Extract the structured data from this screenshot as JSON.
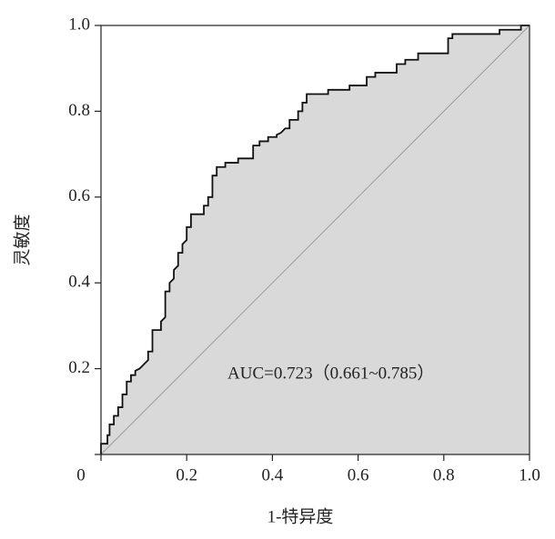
{
  "chart_data": {
    "type": "line",
    "x_label": "1-特异度",
    "y_label": "灵敏度",
    "annotation": "AUC=0.723（0.661~0.785）",
    "x": [
      0,
      0,
      0.015,
      0.015,
      0.02,
      0.02,
      0.03,
      0.03,
      0.04,
      0.04,
      0.05,
      0.05,
      0.06,
      0.06,
      0.07,
      0.07,
      0.08,
      0.08,
      0.09,
      0.1,
      0.11,
      0.11,
      0.12,
      0.12,
      0.14,
      0.14,
      0.15,
      0.15,
      0.16,
      0.16,
      0.17,
      0.17,
      0.18,
      0.18,
      0.19,
      0.19,
      0.2,
      0.2,
      0.21,
      0.21,
      0.24,
      0.24,
      0.25,
      0.25,
      0.26,
      0.26,
      0.27,
      0.27,
      0.29,
      0.29,
      0.32,
      0.32,
      0.355,
      0.355,
      0.37,
      0.37,
      0.39,
      0.39,
      0.41,
      0.41,
      0.42,
      0.43,
      0.44,
      0.44,
      0.46,
      0.46,
      0.47,
      0.47,
      0.48,
      0.48,
      0.53,
      0.53,
      0.58,
      0.58,
      0.62,
      0.62,
      0.64,
      0.64,
      0.69,
      0.69,
      0.71,
      0.71,
      0.74,
      0.74,
      0.81,
      0.81,
      0.82,
      0.82,
      0.93,
      0.93,
      0.98,
      0.98,
      1
    ],
    "values": [
      0,
      0.025,
      0.025,
      0.045,
      0.045,
      0.07,
      0.07,
      0.09,
      0.09,
      0.11,
      0.11,
      0.14,
      0.14,
      0.17,
      0.17,
      0.185,
      0.185,
      0.195,
      0.2,
      0.21,
      0.22,
      0.24,
      0.24,
      0.29,
      0.29,
      0.31,
      0.32,
      0.38,
      0.38,
      0.4,
      0.41,
      0.43,
      0.44,
      0.47,
      0.47,
      0.49,
      0.5,
      0.53,
      0.53,
      0.56,
      0.56,
      0.58,
      0.58,
      0.6,
      0.6,
      0.65,
      0.65,
      0.67,
      0.67,
      0.68,
      0.68,
      0.69,
      0.69,
      0.72,
      0.72,
      0.73,
      0.73,
      0.74,
      0.74,
      0.745,
      0.75,
      0.76,
      0.76,
      0.78,
      0.78,
      0.8,
      0.8,
      0.82,
      0.82,
      0.84,
      0.84,
      0.85,
      0.85,
      0.86,
      0.86,
      0.88,
      0.88,
      0.89,
      0.89,
      0.91,
      0.91,
      0.92,
      0.92,
      0.935,
      0.935,
      0.97,
      0.97,
      0.98,
      0.98,
      0.99,
      0.99,
      1,
      1
    ],
    "color": "#111111",
    "fill": "#d9d9d9",
    "xlim": [
      0,
      1
    ],
    "ylim": [
      0,
      1
    ],
    "xticks": [
      0,
      0.2,
      0.4,
      0.6,
      0.8,
      {
        "value": 1,
        "label": "1.0"
      }
    ],
    "yticks": [
      0.2,
      0.4,
      0.6,
      0.8,
      {
        "value": 1,
        "label": "1.0"
      }
    ]
  }
}
